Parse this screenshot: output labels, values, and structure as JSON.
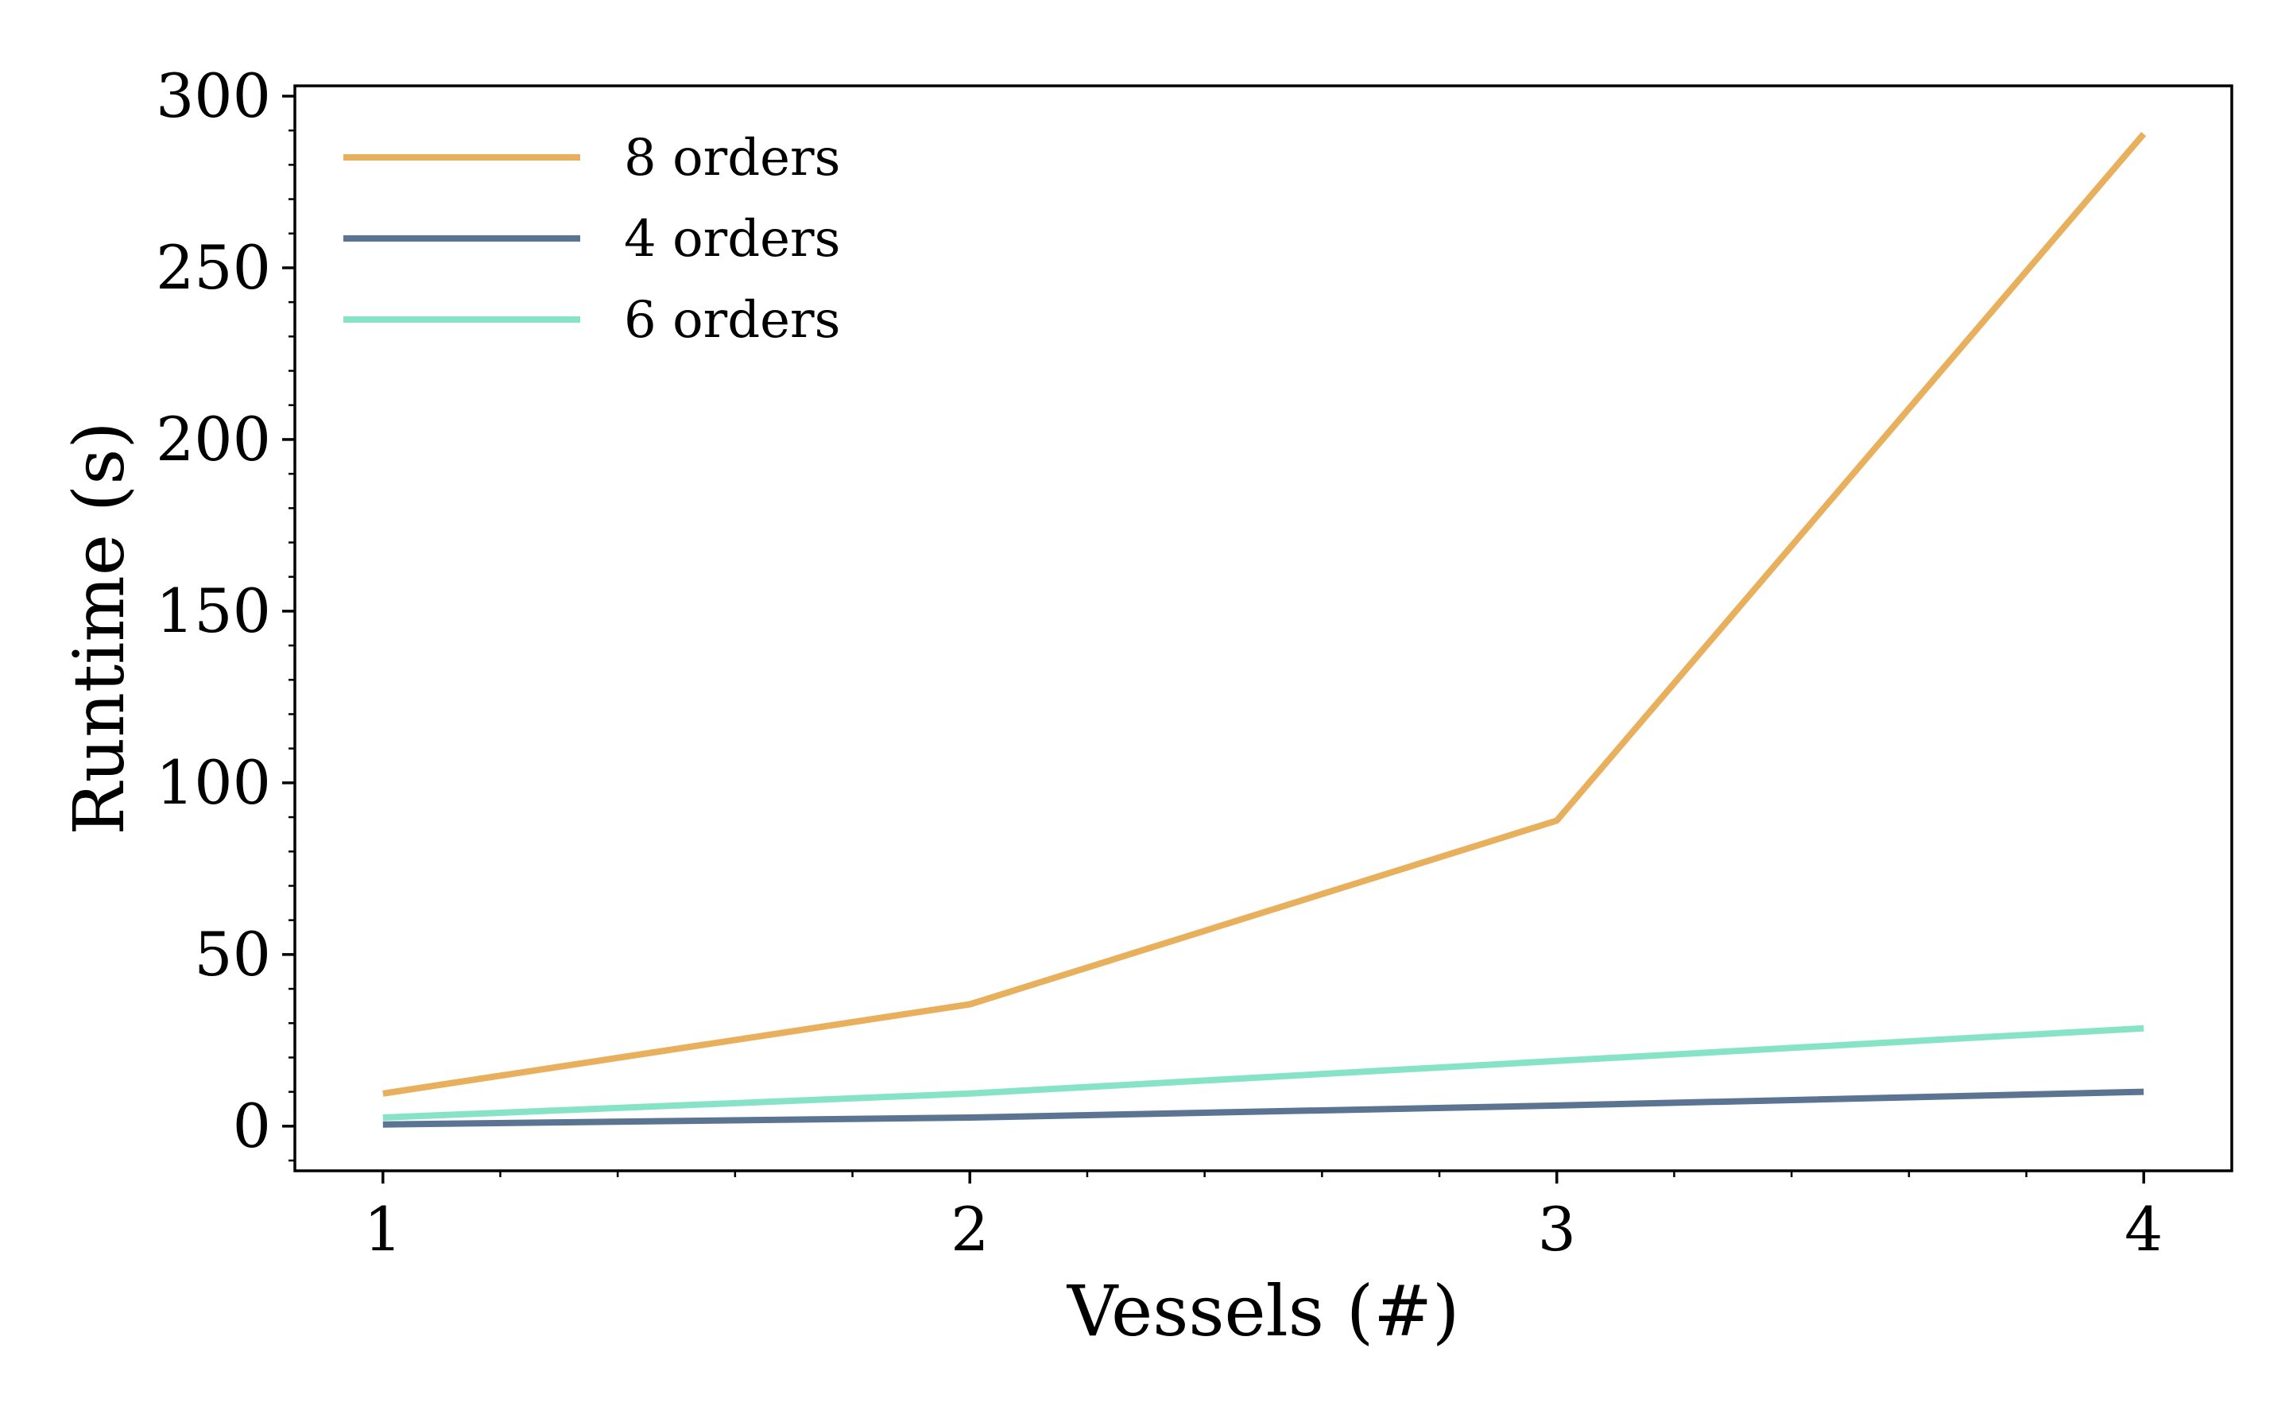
{
  "chart_data": {
    "type": "line",
    "title": "",
    "xlabel": "Vessels (#)",
    "ylabel": "Runtime (s)",
    "x": [
      1,
      2,
      3,
      4
    ],
    "xlim": [
      0.85,
      4.15
    ],
    "ylim": [
      -13,
      303
    ],
    "xticks": [
      1,
      2,
      3,
      4
    ],
    "xtick_labels": [
      "1",
      "2",
      "3",
      "4"
    ],
    "yticks": [
      0,
      50,
      100,
      150,
      200,
      250,
      300
    ],
    "ytick_labels": [
      "0",
      "50",
      "100",
      "150",
      "200",
      "250",
      "300"
    ],
    "grid": false,
    "legend_position": "top-left",
    "series": [
      {
        "name": "8 orders",
        "color": "#E8B05C",
        "values": [
          9.5,
          35.5,
          89,
          289
        ]
      },
      {
        "name": "4 orders",
        "color": "#5A7491",
        "values": [
          0.5,
          2.5,
          6,
          10
        ]
      },
      {
        "name": "6 orders",
        "color": "#86E3C6",
        "values": [
          2.5,
          9.5,
          19,
          28.5
        ]
      }
    ]
  }
}
